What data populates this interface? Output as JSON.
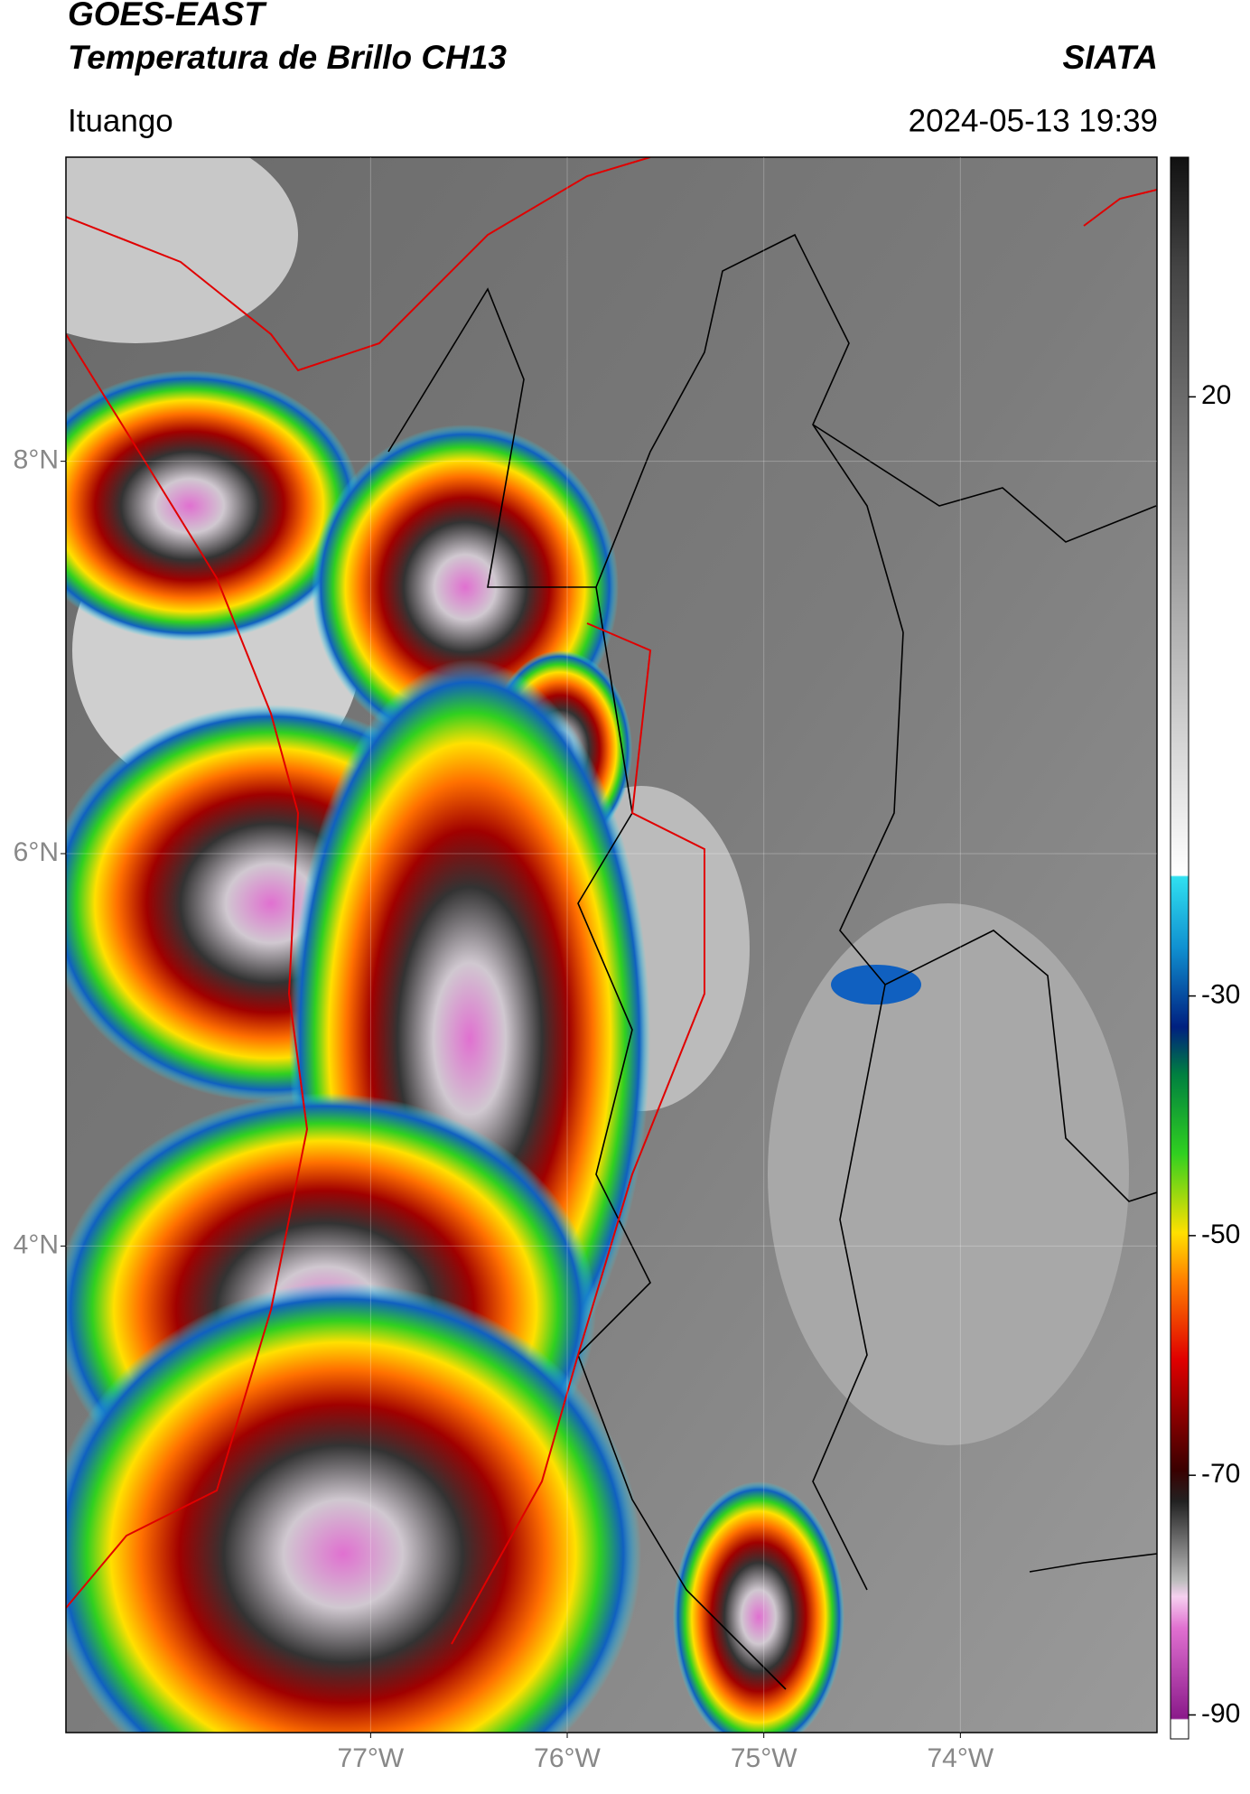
{
  "chart_data": {
    "type": "satellite-map",
    "title": "GOES-EAST",
    "subtitle": "Temperatura de Brillo CH13",
    "source": "SIATA",
    "location": "Ituango",
    "datetime": "2024-05-13 19:39",
    "xlim": [
      -78.55,
      -73.0
    ],
    "ylim": [
      1.52,
      9.55
    ],
    "xticks": [
      {
        "value": -77,
        "label": "77°W"
      },
      {
        "value": -76,
        "label": "76°W"
      },
      {
        "value": -75,
        "label": "75°W"
      },
      {
        "value": -74,
        "label": "74°W"
      }
    ],
    "yticks": [
      {
        "value": 8,
        "label": "8°N"
      },
      {
        "value": 6,
        "label": "6°N"
      },
      {
        "value": 4,
        "label": "4°N"
      }
    ],
    "colorbar_lim": [
      -92,
      40
    ],
    "colorbar_ticks": [
      20,
      -30,
      -50,
      -70,
      -90
    ],
    "grid": true
  }
}
